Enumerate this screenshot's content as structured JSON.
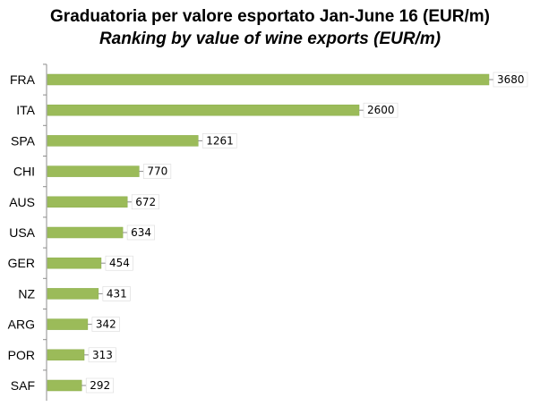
{
  "chart_data": {
    "type": "bar",
    "orientation": "horizontal",
    "title": "Graduatoria per valore esportato Jan-June 16 (EUR/m)",
    "subtitle": "Ranking  by value of wine exports (EUR/m)",
    "categories": [
      "FRA",
      "ITA",
      "SPA",
      "CHI",
      "AUS",
      "USA",
      "GER",
      "NZ",
      "ARG",
      "POR",
      "SAF"
    ],
    "values": [
      3680,
      2600,
      1261,
      770,
      672,
      634,
      454,
      431,
      342,
      313,
      292
    ],
    "data_labels": [
      "3680",
      "2600",
      "1261",
      "770",
      "672",
      "634",
      "454",
      "431",
      "342",
      "313",
      "292"
    ],
    "xlabel": "",
    "ylabel": "",
    "xlim": [
      0,
      3680
    ],
    "grid": false,
    "legend": "none",
    "colors": {
      "bar_fill": "#9bbb59",
      "bar_edge": "#8aad4a",
      "axis": "#8c8c8c",
      "leader": "#8c8c8c"
    }
  }
}
